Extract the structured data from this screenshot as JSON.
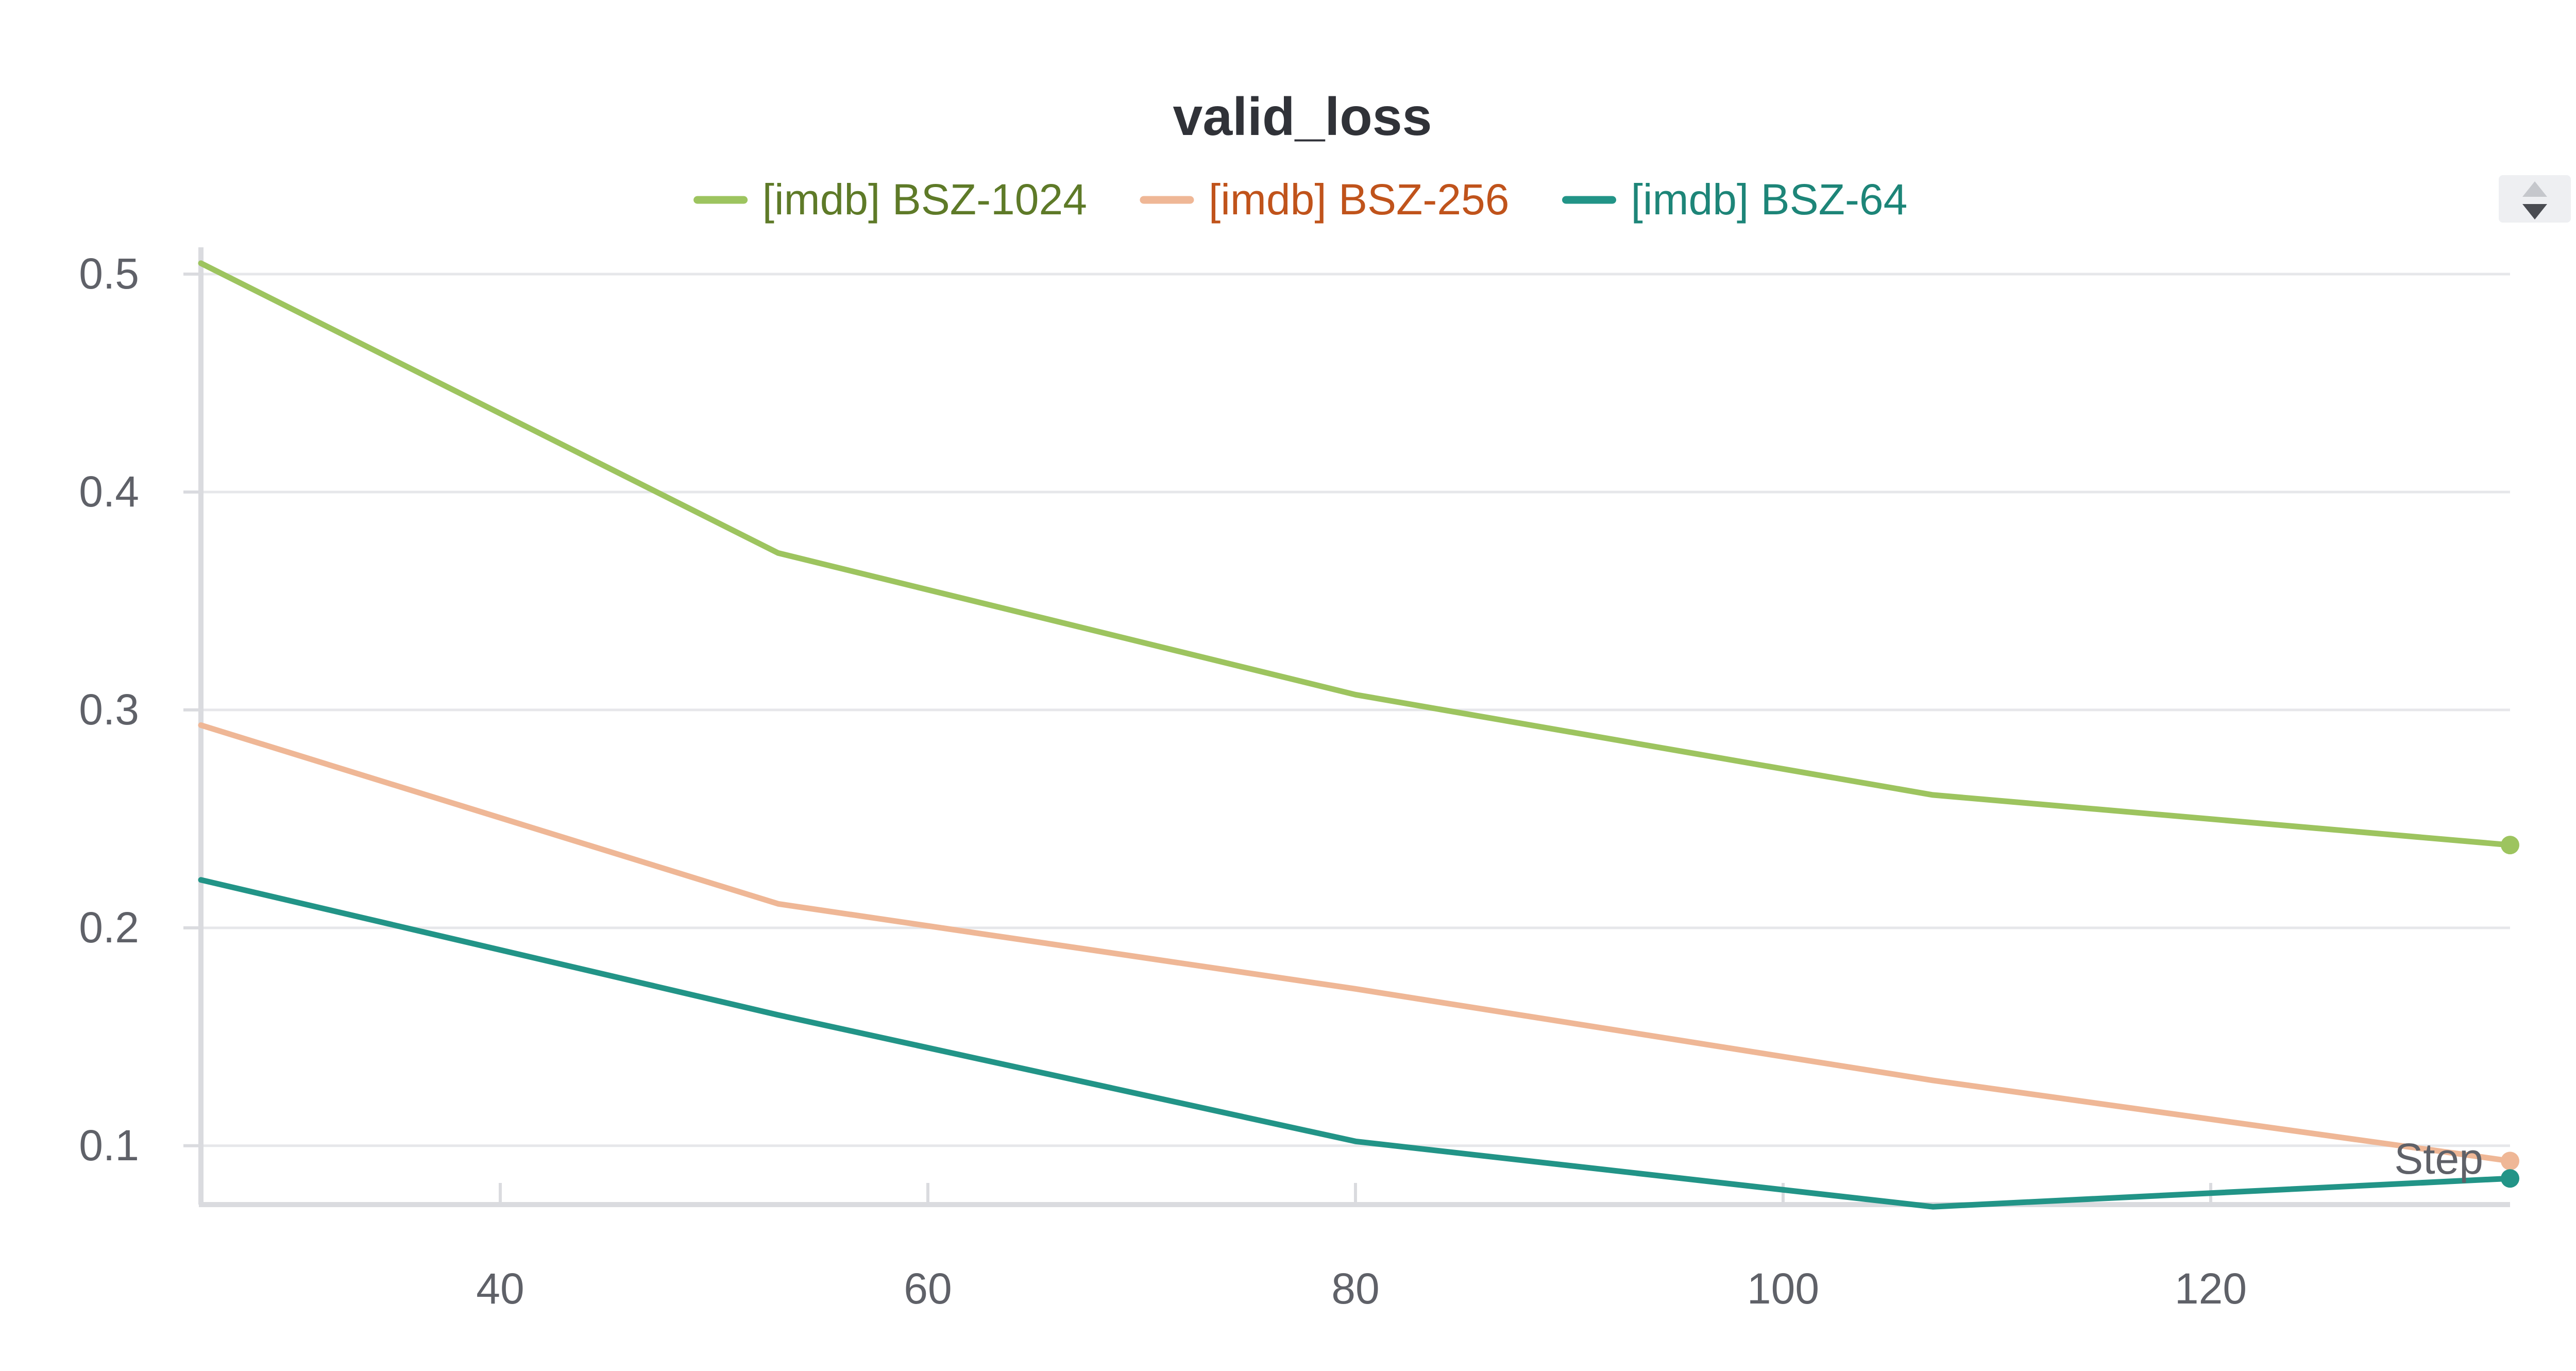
{
  "chart_data": {
    "type": "line",
    "title": "valid_loss",
    "xlabel": "Step",
    "ylabel": "",
    "xlim": [
      26,
      134
    ],
    "ylim": [
      0.073,
      0.5
    ],
    "x_ticks": [
      40,
      60,
      80,
      100,
      120
    ],
    "y_ticks": [
      0.1,
      0.2,
      0.3,
      0.4,
      0.5
    ],
    "grid": true,
    "legend_position": "top",
    "x": [
      26,
      53,
      80,
      107,
      134
    ],
    "series": [
      {
        "name": "[imdb] BSZ-1024",
        "color": "#9dc45f",
        "label_color": "#5e7a28",
        "values": [
          0.505,
          0.372,
          0.307,
          0.261,
          0.238
        ]
      },
      {
        "name": "[imdb] BSZ-256",
        "color": "#efb796",
        "label_color": "#c0531b",
        "values": [
          0.293,
          0.211,
          0.172,
          0.13,
          0.093
        ]
      },
      {
        "name": "[imdb] BSZ-64",
        "color": "#229487",
        "label_color": "#1d8578",
        "values": [
          0.222,
          0.16,
          0.102,
          0.072,
          0.085
        ]
      }
    ]
  },
  "controls": {
    "legend_scroll_icon": "up-down-arrows-icon"
  }
}
